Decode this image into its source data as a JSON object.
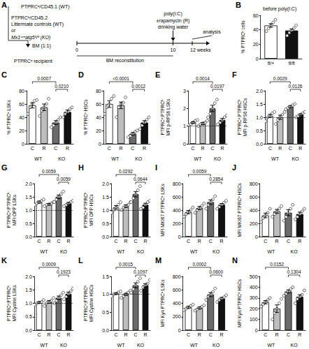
{
  "diagram": {
    "label": "A",
    "donor_wt": "PTPRCᵃ/CD45.1 (WT)",
    "donor_b": "PTPRCᵇ/CD45.2",
    "littermate": "Littermate controls (WT)",
    "or": "or",
    "ko": "Mx1ᶜʳᵉatg5ᶠˡ/ᶠˡ (KO)",
    "mix": "BM (1:1)",
    "recipient": "PTPRCᵃ recipient",
    "reconstitution": "BM reconstitution",
    "polyic": "poly(I:C)",
    "rapamycin": "±rapamycin (R)",
    "water": "drinking water",
    "analysis": "analysis",
    "timeline": [
      {
        "value": 0,
        "label": "0"
      },
      {
        "value": 10,
        "label": "10"
      },
      {
        "value": 12,
        "label": "12 weeks"
      }
    ]
  },
  "chart_data": [
    {
      "type": "bar",
      "label": "B",
      "title": "before poly(I:C)",
      "y_label": "% PTPRCᵇ cells",
      "categories": [
        "fl/+",
        "fl/fl"
      ],
      "colors": [
        "#ffffff",
        "#111111"
      ],
      "values": [
        46,
        39
      ],
      "errors": [
        2.5,
        2.3
      ],
      "points": [
        [
          38,
          42,
          46,
          50,
          54
        ],
        [
          32,
          36,
          39,
          42,
          46
        ]
      ],
      "ylim": [
        0,
        60
      ],
      "yticks": [
        0,
        20,
        40,
        60
      ],
      "grid": false
    },
    {
      "type": "bar",
      "label": "C",
      "y_label": "% PTPRCᵃ LSKs",
      "categories": [
        "C",
        "R",
        "C",
        "R"
      ],
      "groups": [
        "WT",
        "KO"
      ],
      "colors": [
        "#ffffff",
        "#bdbdbd",
        "#6b6b6b",
        "#111111"
      ],
      "values": [
        58,
        55,
        32,
        48
      ],
      "errors": [
        4,
        5,
        3,
        3
      ],
      "points": [
        [
          45,
          55,
          60,
          65,
          66
        ],
        [
          42,
          50,
          55,
          60,
          68
        ],
        [
          25,
          28,
          32,
          36,
          40
        ],
        [
          40,
          45,
          48,
          52,
          55
        ]
      ],
      "ylim": [
        0,
        80
      ],
      "yticks": [
        0,
        20,
        40,
        60,
        80
      ],
      "grid": false,
      "annotations": [
        {
          "from": 0,
          "to": 2,
          "text": "0.0007"
        },
        {
          "from": 2,
          "to": 3,
          "text": "0.0210"
        }
      ]
    },
    {
      "type": "bar",
      "label": "D",
      "y_label": "% PTPRCᵃ HSCs",
      "categories": [
        "C",
        "R",
        "C",
        "R"
      ],
      "groups": [
        "WT",
        "KO"
      ],
      "colors": [
        "#ffffff",
        "#bdbdbd",
        "#6b6b6b",
        "#111111"
      ],
      "values": [
        60,
        58,
        15,
        32
      ],
      "errors": [
        5,
        5,
        2,
        3
      ],
      "points": [
        [
          45,
          55,
          60,
          68,
          72
        ],
        [
          40,
          55,
          60,
          62,
          70
        ],
        [
          10,
          12,
          15,
          18,
          20
        ],
        [
          22,
          28,
          32,
          36,
          40
        ]
      ],
      "ylim": [
        0,
        80
      ],
      "yticks": [
        0,
        20,
        40,
        60,
        80
      ],
      "grid": false,
      "annotations": [
        {
          "from": 0,
          "to": 2,
          "text": "<0.0001"
        },
        {
          "from": 2,
          "to": 3,
          "text": "0.0012"
        }
      ]
    },
    {
      "type": "bar",
      "label": "E",
      "y_label": "PTPRCᵃ:PTPRCᵇ\nMFI p-RPS6 LSKs",
      "categories": [
        "C",
        "R",
        "C",
        "R"
      ],
      "groups": [
        "WT",
        "KO"
      ],
      "colors": [
        "#ffffff",
        "#bdbdbd",
        "#6b6b6b",
        "#111111"
      ],
      "values": [
        1.2,
        1.15,
        2.0,
        1.35
      ],
      "errors": [
        0.05,
        0.06,
        0.18,
        0.09
      ],
      "points": [
        [
          1.05,
          1.1,
          1.2,
          1.3,
          1.35
        ],
        [
          1.0,
          1.1,
          1.15,
          1.2,
          1.3
        ],
        [
          1.5,
          1.7,
          2.0,
          2.3,
          2.5
        ],
        [
          1.1,
          1.2,
          1.3,
          1.5,
          1.6
        ]
      ],
      "ylim": [
        0,
        3
      ],
      "yticks": [
        0,
        1,
        2,
        3
      ],
      "hline": 1,
      "grid": false,
      "annotations": [
        {
          "from": 0,
          "to": 2,
          "text": "0.0014"
        },
        {
          "from": 2,
          "to": 3,
          "text": "0.0197"
        }
      ]
    },
    {
      "type": "bar",
      "label": "F",
      "y_label": "PTPRCᵃ:PTPRCᵇ\nMFI p-RPS6 HSCs",
      "categories": [
        "C",
        "R",
        "C",
        "R"
      ],
      "groups": [
        "WT",
        "KO"
      ],
      "colors": [
        "#ffffff",
        "#bdbdbd",
        "#6b6b6b",
        "#111111"
      ],
      "values": [
        1.05,
        1.0,
        1.4,
        1.1
      ],
      "errors": [
        0.06,
        0.08,
        0.04,
        0.03
      ],
      "points": [
        [
          0.85,
          1.0,
          1.05,
          1.15,
          1.2
        ],
        [
          0.75,
          0.9,
          1.0,
          1.1,
          1.2
        ],
        [
          1.3,
          1.35,
          1.4,
          1.45,
          1.5
        ],
        [
          1.0,
          1.05,
          1.1,
          1.15,
          1.2
        ]
      ],
      "ylim": [
        0,
        2
      ],
      "yticks": [
        {
          "value": 0,
          "label": "0.0"
        },
        {
          "value": 0.5,
          "label": "0.5"
        },
        {
          "value": 1,
          "label": "1.0"
        },
        {
          "value": 1.5,
          "label": "1.5"
        },
        {
          "value": 2,
          "label": "2.0"
        }
      ],
      "hline": 1,
      "grid": false,
      "annotations": [
        {
          "from": 0,
          "to": 2,
          "text": "0.0029"
        },
        {
          "from": 2,
          "to": 3,
          "text": "0.0126"
        }
      ]
    },
    {
      "type": "bar",
      "label": "G",
      "y_label": "PTPRCᵃ:PTPRCᵇ\nMFI OPP LSKs",
      "categories": [
        "C",
        "R",
        "C",
        "R"
      ],
      "groups": [
        "WT",
        "KO"
      ],
      "colors": [
        "#ffffff",
        "#bdbdbd",
        "#6b6b6b",
        "#111111"
      ],
      "values": [
        1.3,
        1.22,
        1.5,
        1.25
      ],
      "errors": [
        0.04,
        0.03,
        0.07,
        0.04
      ],
      "points": [
        [
          1.2,
          1.25,
          1.3,
          1.35,
          1.4
        ],
        [
          1.15,
          1.2,
          1.22,
          1.25,
          1.3
        ],
        [
          1.3,
          1.4,
          1.5,
          1.6,
          1.7
        ],
        [
          1.15,
          1.2,
          1.25,
          1.3,
          1.35
        ]
      ],
      "ylim": [
        0,
        2
      ],
      "yticks": [
        {
          "value": 0,
          "label": "0.0"
        },
        {
          "value": 0.5,
          "label": "0.5"
        },
        {
          "value": 1,
          "label": "1.0"
        },
        {
          "value": 1.5,
          "label": "1.5"
        },
        {
          "value": 2,
          "label": "2.0"
        }
      ],
      "hline": 1,
      "grid": false,
      "annotations": [
        {
          "from": 0,
          "to": 2,
          "text": "0.0059"
        },
        {
          "from": 2,
          "to": 3,
          "text": "0.0059"
        }
      ]
    },
    {
      "type": "bar",
      "label": "H",
      "y_label": "PTPRCᵃ:PTPRCᵇ\nMFI OPP HSCs",
      "categories": [
        "C",
        "R",
        "C",
        "R"
      ],
      "groups": [
        "WT",
        "KO"
      ],
      "colors": [
        "#ffffff",
        "#bdbdbd",
        "#6b6b6b",
        "#111111"
      ],
      "values": [
        1.1,
        1.15,
        1.6,
        1.2
      ],
      "errors": [
        0.07,
        0.05,
        0.1,
        0.06
      ],
      "points": [
        [
          0.9,
          1.0,
          1.1,
          1.2,
          1.3
        ],
        [
          1.0,
          1.1,
          1.15,
          1.2,
          1.3
        ],
        [
          1.3,
          1.45,
          1.6,
          1.75,
          1.9
        ],
        [
          1.05,
          1.1,
          1.2,
          1.3,
          1.35
        ]
      ],
      "ylim": [
        0,
        2
      ],
      "yticks": [
        {
          "value": 0,
          "label": "0.0"
        },
        {
          "value": 0.5,
          "label": "0.5"
        },
        {
          "value": 1,
          "label": "1.0"
        },
        {
          "value": 1.5,
          "label": "1.5"
        },
        {
          "value": 2,
          "label": "2.0"
        }
      ],
      "hline": 1,
      "grid": false,
      "annotations": [
        {
          "from": 0,
          "to": 2,
          "text": "0.0292"
        },
        {
          "from": 2,
          "to": 3,
          "text": "0.0644"
        }
      ]
    },
    {
      "type": "bar",
      "label": "I",
      "y_label": "MFI MKI67 PTPRCᵃ LSKs",
      "categories": [
        "C",
        "R",
        "C",
        "R"
      ],
      "groups": [
        "WT",
        "KO"
      ],
      "colors": [
        "#ffffff",
        "#bdbdbd",
        "#6b6b6b",
        "#111111"
      ],
      "values": [
        370,
        430,
        520,
        480
      ],
      "errors": [
        25,
        25,
        35,
        20
      ],
      "points": [
        [
          300,
          340,
          370,
          400,
          440
        ],
        [
          360,
          400,
          430,
          460,
          500
        ],
        [
          420,
          480,
          520,
          560,
          610
        ],
        [
          420,
          450,
          480,
          510,
          540
        ]
      ],
      "ylim": [
        0,
        800
      ],
      "yticks": [
        0,
        200,
        400,
        600,
        800
      ],
      "grid": false,
      "annotations": [
        {
          "from": 0,
          "to": 2,
          "text": "0.0059"
        },
        {
          "from": 2,
          "to": 3,
          "text": "0.2854"
        }
      ]
    },
    {
      "type": "bar",
      "label": "J",
      "y_label": "MFI MKI67 PTPRCᵃ HSCs",
      "categories": [
        "C",
        "R",
        "C",
        "R"
      ],
      "groups": [
        "WT",
        "KO"
      ],
      "colors": [
        "#ffffff",
        "#bdbdbd",
        "#6b6b6b",
        "#111111"
      ],
      "values": [
        320,
        380,
        360,
        340
      ],
      "errors": [
        35,
        30,
        45,
        30
      ],
      "points": [
        [
          220,
          280,
          320,
          360,
          420
        ],
        [
          300,
          340,
          380,
          420,
          460
        ],
        [
          240,
          300,
          360,
          420,
          480
        ],
        [
          260,
          300,
          340,
          380,
          420
        ]
      ],
      "ylim": [
        0,
        800
      ],
      "yticks": [
        0,
        200,
        400,
        600,
        800
      ],
      "grid": false
    },
    {
      "type": "bar",
      "label": "K",
      "y_label": "PTPRCᵃ:PTPRCᵇ\nMFI Cystine LSKs",
      "categories": [
        "C",
        "R",
        "C",
        "R"
      ],
      "groups": [
        "WT",
        "KO"
      ],
      "colors": [
        "#ffffff",
        "#bdbdbd",
        "#6b6b6b",
        "#111111"
      ],
      "values": [
        1.03,
        1.05,
        1.2,
        1.35
      ],
      "errors": [
        0.03,
        0.05,
        0.07,
        0.07
      ],
      "points": [
        [
          0.95,
          1.0,
          1.03,
          1.05,
          1.12
        ],
        [
          0.9,
          1.0,
          1.05,
          1.1,
          1.2
        ],
        [
          1.0,
          1.1,
          1.2,
          1.3,
          1.4
        ],
        [
          1.15,
          1.25,
          1.35,
          1.45,
          1.55
        ]
      ],
      "ylim": [
        0,
        2
      ],
      "yticks": [
        {
          "value": 0,
          "label": "0.0"
        },
        {
          "value": 0.5,
          "label": "0.5"
        },
        {
          "value": 1,
          "label": "1.0"
        },
        {
          "value": 1.5,
          "label": "1.5"
        },
        {
          "value": 2,
          "label": "2.0"
        }
      ],
      "hline": 1,
      "grid": false,
      "annotations": [
        {
          "from": 0,
          "to": 2,
          "text": "0.0009"
        },
        {
          "from": 2,
          "to": 3,
          "text": "0.1923"
        }
      ]
    },
    {
      "type": "bar",
      "label": "L",
      "y_label": "PTPRCᵃ:PTPRCᵇ\nMFI Cystine HSCs",
      "categories": [
        "C",
        "R",
        "C",
        "R"
      ],
      "groups": [
        "WT",
        "KO"
      ],
      "colors": [
        "#ffffff",
        "#bdbdbd",
        "#6b6b6b",
        "#111111"
      ],
      "values": [
        1.02,
        1.0,
        1.25,
        1.25
      ],
      "errors": [
        0.02,
        0.03,
        0.07,
        0.05
      ],
      "points": [
        [
          0.95,
          1.0,
          1.02,
          1.05,
          1.08
        ],
        [
          0.9,
          0.95,
          1.0,
          1.05,
          1.1
        ],
        [
          1.05,
          1.15,
          1.25,
          1.35,
          1.45
        ],
        [
          1.1,
          1.2,
          1.25,
          1.3,
          1.4
        ]
      ],
      "ylim": [
        0,
        1.5
      ],
      "yticks": [
        {
          "value": 0,
          "label": "0.0"
        },
        {
          "value": 0.5,
          "label": "0.5"
        },
        {
          "value": 1,
          "label": "1.0"
        },
        {
          "value": 1.5,
          "label": "1.5"
        }
      ],
      "hline": 1,
      "grid": false,
      "annotations": [
        {
          "from": 0,
          "to": 2,
          "text": "0.0015"
        },
        {
          "from": 2,
          "to": 3,
          "text": "0.1097"
        }
      ]
    },
    {
      "type": "bar",
      "label": "M",
      "y_label": "MFI Kyn PTPRCᵃ LSKs",
      "categories": [
        "C",
        "R",
        "C",
        "R"
      ],
      "groups": [
        "WT",
        "KO"
      ],
      "colors": [
        "#ffffff",
        "#bdbdbd",
        "#6b6b6b",
        "#111111"
      ],
      "values": [
        340,
        330,
        530,
        470
      ],
      "errors": [
        15,
        15,
        30,
        17
      ],
      "points": [
        [
          300,
          320,
          340,
          360,
          380
        ],
        [
          290,
          310,
          330,
          350,
          370
        ],
        [
          450,
          500,
          530,
          570,
          620
        ],
        [
          420,
          450,
          470,
          490,
          520
        ]
      ],
      "ylim": [
        0,
        800
      ],
      "yticks": [
        0,
        200,
        400,
        600,
        800
      ],
      "grid": false,
      "annotations": [
        {
          "from": 0,
          "to": 2,
          "text": "0.0002"
        },
        {
          "from": 2,
          "to": 3,
          "text": "0.0600"
        }
      ]
    },
    {
      "type": "bar",
      "label": "N",
      "y_label": "MFI Kyn PTPRCᵃ HSCs",
      "categories": [
        "C",
        "R",
        "C",
        "R"
      ],
      "groups": [
        "WT",
        "KO"
      ],
      "colors": [
        "#ffffff",
        "#bdbdbd",
        "#6b6b6b",
        "#111111"
      ],
      "values": [
        260,
        200,
        360,
        310
      ],
      "errors": [
        15,
        35,
        15,
        20
      ],
      "points": [
        [
          220,
          240,
          260,
          280,
          300
        ],
        [
          100,
          160,
          200,
          250,
          290
        ],
        [
          320,
          340,
          360,
          380,
          400
        ],
        [
          250,
          290,
          310,
          330,
          370
        ]
      ],
      "ylim": [
        0,
        500
      ],
      "yticks": [
        0,
        100,
        200,
        300,
        400,
        500
      ],
      "grid": false,
      "annotations": [
        {
          "from": 0,
          "to": 2,
          "text": "0.0152"
        },
        {
          "from": 2,
          "to": 3,
          "text": "0.1304"
        }
      ]
    }
  ]
}
